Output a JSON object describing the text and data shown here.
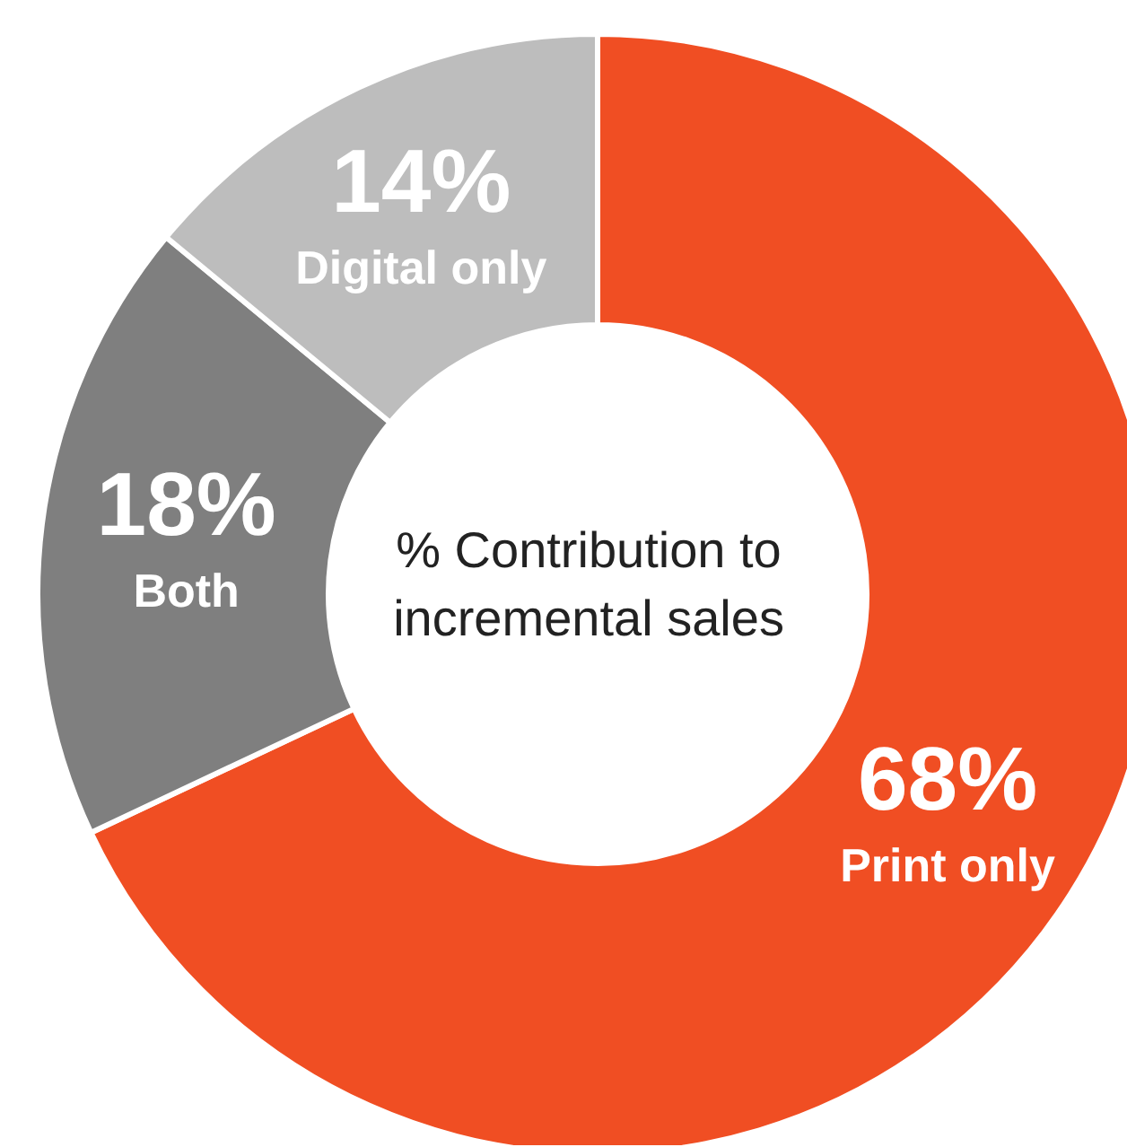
{
  "chart_data": {
    "type": "donut",
    "title": "% Contribution to incremental sales",
    "categories": [
      "Print only",
      "Both",
      "Digital only"
    ],
    "values": [
      68,
      18,
      14
    ],
    "colors": [
      "#f04e23",
      "#7f7f7f",
      "#bdbdbd"
    ],
    "value_labels": [
      "68%",
      "18%",
      "14%"
    ],
    "legend": false
  }
}
